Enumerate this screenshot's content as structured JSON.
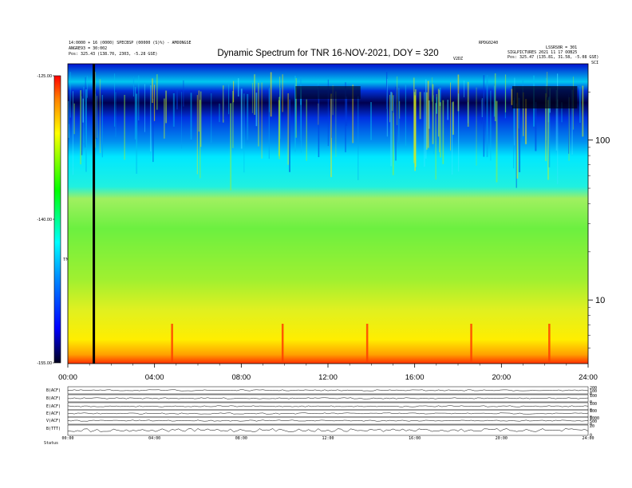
{
  "header": {
    "title": "Dynamic Spectrum for TNR 16-NOV-2021, DOY = 320",
    "left_lines": [
      "14:0000 + 16 (0000) SPECBSP (00000 (S)%) - AMOONGSE",
      "ANGRE93 = 30:002",
      "Pos:  325.43 (138.70, 2303, -5.28 GSE)"
    ],
    "right_lines": [
      "RPDG0240",
      "LSSRS0R = 301",
      "SIGLPICTURES  2021 11 17 OOB25",
      "Pos:  325.47 (135.81, 31.58, -5.08 GSE)"
    ],
    "corner_label": "V2DZ",
    "top_right_label": "SCI"
  },
  "chart_data": {
    "type": "heatmap",
    "title": "Dynamic Spectrum for TNR 16-NOV-2021, DOY = 320",
    "x_tick_labels": [
      "00:00",
      "04:00",
      "08:00",
      "12:00",
      "16:00",
      "20:00",
      "24:00"
    ],
    "x_ticks_hours": [
      0,
      4,
      8,
      12,
      16,
      20,
      24
    ],
    "xlim": [
      0,
      24
    ],
    "y_axis": {
      "scale": "log",
      "tick_labels": [
        "100",
        "10"
      ],
      "tick_values": [
        100,
        10
      ],
      "ylim": [
        4,
        300
      ]
    },
    "colorbar": {
      "tick_labels": [
        "-125.00",
        "-140.00",
        "-155.00"
      ],
      "tick_values": [
        -125,
        -140,
        -155
      ],
      "range": [
        -155,
        -125
      ],
      "label": "TNR",
      "colors": [
        "#ff0000",
        "#ffff00",
        "#00ff00",
        "#00ffff",
        "#0000ff",
        "#000020"
      ]
    },
    "data_gap_hours": [
      1.2
    ],
    "bright_bursts_hours": [
      4.8,
      9.9,
      13.8,
      18.6,
      22.2
    ]
  },
  "bottom_panels": {
    "left_labels": [
      "B(ACF)",
      "B(ACF)",
      "E(ACF)",
      "E(ACF)",
      "V(ACF)",
      "B(TTT)"
    ],
    "right_ticks": [
      [
        "200",
        "100",
        "0"
      ],
      [
        "100",
        "0"
      ],
      [
        "100",
        "0"
      ],
      [
        "100",
        "0"
      ],
      [
        "1000",
        "500",
        "0"
      ],
      [
        "20",
        "0"
      ]
    ],
    "x_tick_labels": [
      "00:00",
      "04:00",
      "08:00",
      "12:00",
      "16:00",
      "20:00",
      "24:00"
    ],
    "footer_label": "Status"
  }
}
